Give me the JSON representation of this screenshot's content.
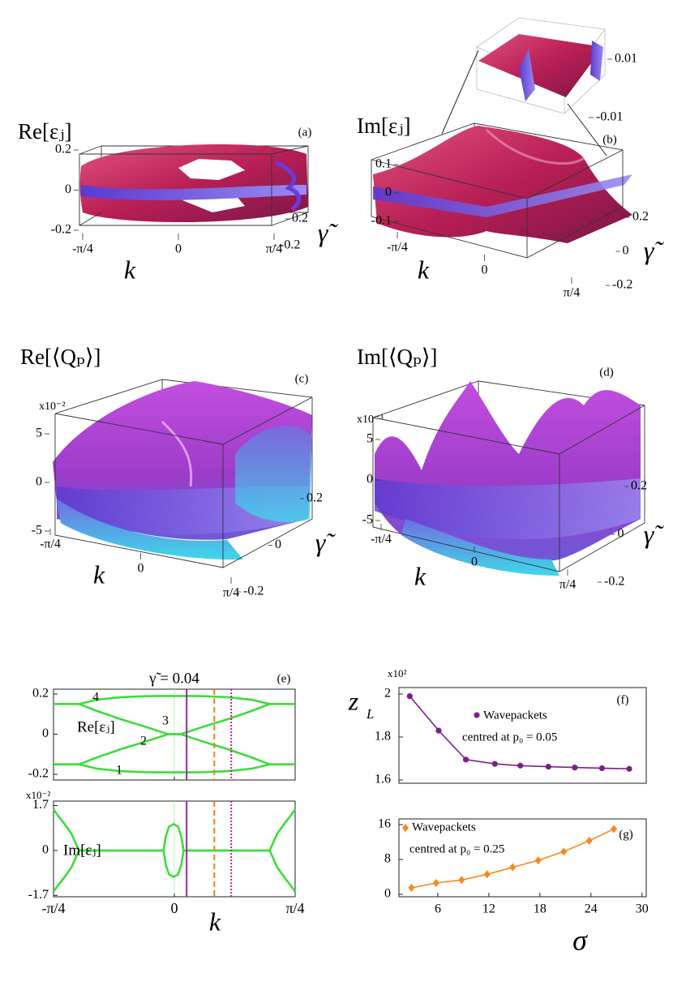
{
  "chart_data": [
    {
      "type": "surface3d",
      "title": "Re[εⱼ]",
      "panel_label": "(a)",
      "xlabel": "k",
      "ylabel": "γ̃",
      "xlim": [
        -0.7854,
        0.7854
      ],
      "xticks": [
        {
          "value": -0.7854,
          "label": "-π/4"
        },
        0,
        {
          "value": 0.7854,
          "label": "π/4"
        }
      ],
      "ylim": [
        -0.2,
        0.2
      ],
      "yticks": [
        -0.2,
        0.2
      ],
      "zlim": [
        -0.2,
        0.2
      ],
      "zticks": [
        0.2,
        0,
        -0.2
      ]
    },
    {
      "type": "surface3d",
      "title": "Im[εⱼ]",
      "panel_label": "(b)",
      "xlabel": "k",
      "ylabel": "γ̃",
      "xlim": [
        -0.7854,
        0.7854
      ],
      "xticks": [
        {
          "value": -0.7854,
          "label": "-π/4"
        },
        0,
        {
          "value": 0.7854,
          "label": "π/4"
        }
      ],
      "ylim": [
        -0.2,
        0.2
      ],
      "yticks": [
        0.2,
        0,
        -0.2
      ],
      "zlim": [
        -0.1,
        0.1
      ],
      "zticks": [
        0.1,
        0,
        -0.1
      ],
      "inset": {
        "zlim": [
          -0.01,
          0.01
        ],
        "zticks": [
          0.01,
          -0.01
        ]
      }
    },
    {
      "type": "surface3d",
      "title": "Re[⟨Qₚ⟩]",
      "panel_label": "(c)",
      "multiplier": "x10⁻²",
      "xlabel": "k",
      "ylabel": "γ̃",
      "xlim": [
        -0.7854,
        0.7854
      ],
      "xticks": [
        {
          "value": -0.7854,
          "label": "-π/4"
        },
        0,
        {
          "value": 0.7854,
          "label": "π/4"
        }
      ],
      "ylim": [
        -0.2,
        0.2
      ],
      "yticks": [
        0.2,
        0,
        -0.2
      ],
      "zlim": [
        -5,
        5
      ],
      "zticks": [
        5,
        0,
        -5
      ]
    },
    {
      "type": "surface3d",
      "title": "Im[⟨Qₚ⟩]",
      "panel_label": "(d)",
      "multiplier": "x10⁻³",
      "xlabel": "k",
      "ylabel": "γ̃",
      "xlim": [
        -0.7854,
        0.7854
      ],
      "xticks": [
        {
          "value": -0.7854,
          "label": "-π/4"
        },
        0,
        {
          "value": 0.7854,
          "label": "π/4"
        }
      ],
      "ylim": [
        -0.2,
        0.2
      ],
      "yticks": [
        0.2,
        0,
        -0.2
      ],
      "zlim": [
        -5,
        5
      ],
      "zticks": [
        5,
        0,
        -5
      ]
    },
    {
      "type": "line",
      "title": "γ̃ = 0.04",
      "panel_label": "(e)",
      "xlabel": "k",
      "xlim": [
        -0.7854,
        0.7854
      ],
      "xticks": [
        {
          "value": -0.7854,
          "label": "-π/4"
        },
        0,
        {
          "value": 0.7854,
          "label": "π/4"
        }
      ],
      "markers": [
        {
          "x": 0.08,
          "color": "#8e2c9e",
          "style": "solid"
        },
        {
          "x": 0.26,
          "color": "#f07f1a",
          "style": "dashed"
        },
        {
          "x": 0.37,
          "color": "#c0207a",
          "style": "dotted"
        }
      ],
      "subplots": [
        {
          "annotation": "Re[εⱼ]",
          "ylim": [
            -0.228,
            0.224
          ],
          "yticks": [
            0.2,
            0,
            -0.2
          ],
          "x": [
            -0.785,
            -0.7,
            -0.62,
            -0.5,
            -0.35,
            -0.2,
            -0.1,
            -0.04,
            0,
            0.04,
            0.1,
            0.2,
            0.35,
            0.5,
            0.62,
            0.7,
            0.785
          ],
          "series": [
            {
              "name": "4",
              "color": "#3ddc3d",
              "values": [
                0.15,
                0.15,
                0.15,
                0.172,
                0.184,
                0.189,
                0.19,
                0.19,
                0.19,
                0.19,
                0.19,
                0.189,
                0.184,
                0.172,
                0.15,
                0.15,
                0.15
              ]
            },
            {
              "name": "3",
              "color": "#3ddc3d",
              "values": [
                null,
                null,
                0.15,
                0.115,
                0.075,
                0.04,
                0.015,
                0,
                0,
                0,
                0.015,
                0.04,
                0.075,
                0.115,
                0.15,
                null,
                null
              ]
            },
            {
              "name": "2",
              "color": "#3ddc3d",
              "values": [
                null,
                null,
                -0.15,
                -0.115,
                -0.075,
                -0.04,
                -0.015,
                0,
                0,
                0,
                -0.015,
                -0.04,
                -0.075,
                -0.115,
                -0.15,
                null,
                null
              ]
            },
            {
              "name": "1",
              "color": "#3ddc3d",
              "values": [
                -0.15,
                -0.15,
                -0.15,
                -0.172,
                -0.184,
                -0.189,
                -0.19,
                -0.19,
                -0.19,
                -0.19,
                -0.19,
                -0.189,
                -0.184,
                -0.172,
                -0.15,
                -0.15,
                -0.15
              ]
            }
          ]
        },
        {
          "annotation": "Im[εⱼ]",
          "multiplier": "x10⁻²",
          "ylim": [
            -1.75,
            1.87
          ],
          "yticks": [
            1.7,
            0,
            -1.7
          ],
          "x": [
            -0.785,
            -0.76,
            -0.72,
            -0.67,
            -0.62,
            -0.07,
            -0.055,
            -0.035,
            -0.005,
            0.025,
            0.045,
            0.06,
            0.62,
            0.67,
            0.72,
            0.76,
            0.785
          ],
          "series": [
            {
              "color": "#3ddc3d",
              "values": [
                1.55,
                1.35,
                1.05,
                0.65,
                0,
                0,
                0.55,
                0.9,
                1.0,
                0.9,
                0.55,
                0,
                0,
                0.65,
                1.05,
                1.35,
                1.55
              ]
            },
            {
              "color": "#3ddc3d",
              "values": [
                -1.55,
                -1.35,
                -1.05,
                -0.65,
                0,
                0,
                -0.55,
                -0.9,
                -1.0,
                -0.9,
                -0.55,
                0,
                0,
                -0.65,
                -1.05,
                -1.35,
                -1.55
              ]
            }
          ]
        }
      ]
    },
    {
      "type": "line",
      "panel_label": "(f)",
      "ylabel": "z",
      "ylabel_subscript": "L",
      "multiplier": "x10²",
      "xlim": [
        1.43,
        30.5
      ],
      "ylim": [
        1.585,
        2.03
      ],
      "yticks": [
        2,
        1.8,
        1.6
      ],
      "x": [
        2.7,
        6.1,
        9.3,
        12.7,
        15.7,
        19.0,
        22.1,
        25.3,
        28.5
      ],
      "series": [
        {
          "name": "Wavepackets",
          "color": "#7b1f8c",
          "marker": "circle",
          "values": [
            1.99,
            1.83,
            1.695,
            1.675,
            1.667,
            1.662,
            1.658,
            1.655,
            1.652
          ]
        }
      ],
      "legend_note": "centred at p₀ = 0.05"
    },
    {
      "type": "line",
      "panel_label": "(g)",
      "xlabel": "σ",
      "xlim": [
        1.43,
        30.5
      ],
      "xticks": [
        6,
        12,
        18,
        24,
        30
      ],
      "ylim": [
        -0.56,
        17.3
      ],
      "yticks": [
        16,
        8,
        0
      ],
      "x": [
        2.9,
        5.8,
        8.8,
        11.8,
        14.8,
        17.8,
        20.8,
        23.8,
        26.7
      ],
      "series": [
        {
          "name": "Wavepackets",
          "color": "#f5891f",
          "marker": "diamond",
          "values": [
            1.5,
            2.6,
            3.3,
            4.6,
            6.2,
            7.8,
            9.8,
            12.3,
            15.0
          ]
        }
      ],
      "legend_note": "centred at p₀ = 0.25"
    }
  ]
}
